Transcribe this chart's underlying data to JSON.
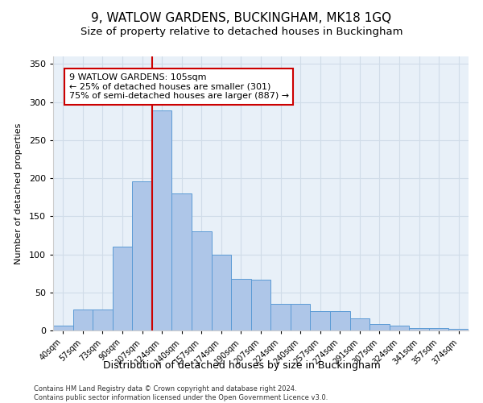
{
  "title": "9, WATLOW GARDENS, BUCKINGHAM, MK18 1GQ",
  "subtitle": "Size of property relative to detached houses in Buckingham",
  "xlabel": "Distribution of detached houses by size in Buckingham",
  "ylabel": "Number of detached properties",
  "categories": [
    "40sqm",
    "57sqm",
    "73sqm",
    "90sqm",
    "107sqm",
    "124sqm",
    "140sqm",
    "157sqm",
    "174sqm",
    "190sqm",
    "207sqm",
    "224sqm",
    "240sqm",
    "257sqm",
    "274sqm",
    "291sqm",
    "307sqm",
    "324sqm",
    "341sqm",
    "357sqm",
    "374sqm"
  ],
  "values": [
    6,
    28,
    28,
    110,
    196,
    289,
    180,
    130,
    100,
    68,
    67,
    35,
    35,
    25,
    25,
    16,
    8,
    6,
    3,
    3,
    2
  ],
  "bar_color": "#aec6e8",
  "bar_edge_color": "#5b9bd5",
  "annotation_text": "9 WATLOW GARDENS: 105sqm\n← 25% of detached houses are smaller (301)\n75% of semi-detached houses are larger (887) →",
  "annotation_box_color": "#ffffff",
  "annotation_box_edge_color": "#cc0000",
  "vline_color": "#cc0000",
  "vline_x_index": 4.5,
  "ylim": [
    0,
    360
  ],
  "yticks": [
    0,
    50,
    100,
    150,
    200,
    250,
    300,
    350
  ],
  "grid_color": "#d0dce8",
  "background_color": "#e8f0f8",
  "footer_line1": "Contains HM Land Registry data © Crown copyright and database right 2024.",
  "footer_line2": "Contains public sector information licensed under the Open Government Licence v3.0.",
  "title_fontsize": 11,
  "subtitle_fontsize": 9.5,
  "xlabel_fontsize": 9,
  "ylabel_fontsize": 8
}
